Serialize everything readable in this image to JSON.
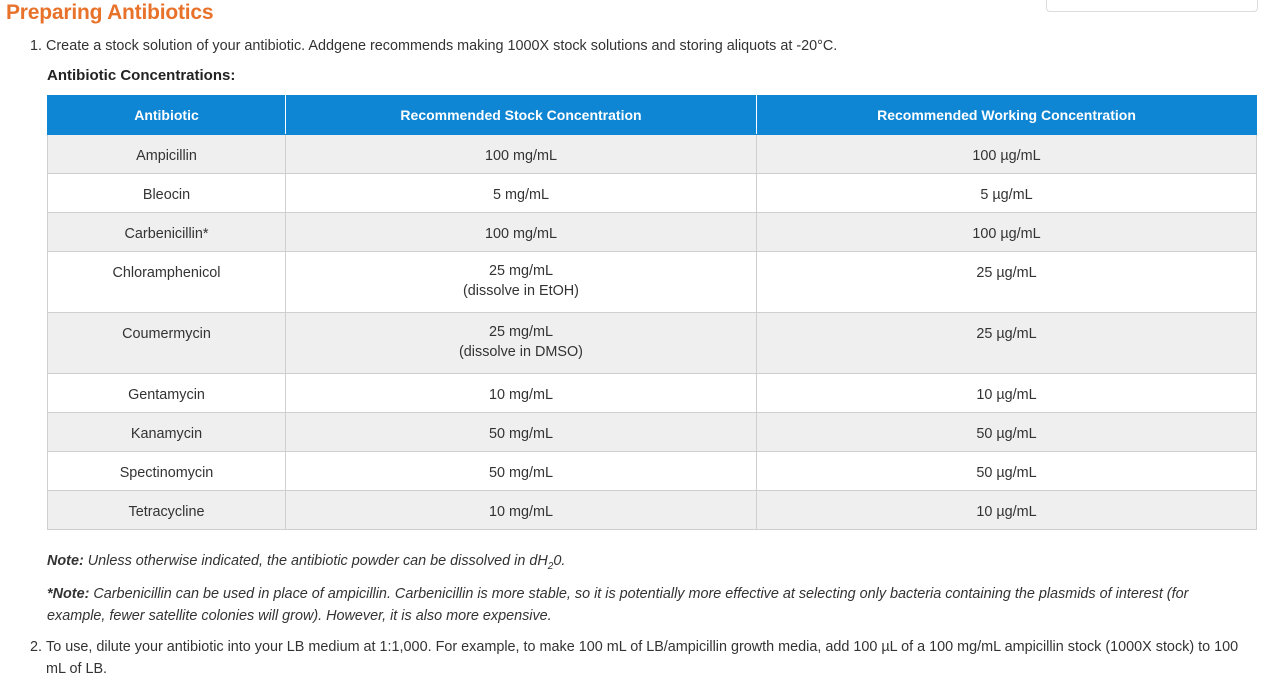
{
  "title": "Preparing Antibiotics",
  "step1": {
    "num": "1.",
    "text": "Create a stock solution of your antibiotic. Addgene recommends making 1000X stock solutions and storing aliquots at -20°C."
  },
  "subheading": "Antibiotic Concentrations:",
  "table": {
    "headers": [
      "Antibiotic",
      "Recommended Stock Concentration",
      "Recommended Working Concentration"
    ],
    "rows": [
      {
        "antibiotic": "Ampicillin",
        "stock": "100 mg/mL",
        "stock_note": "",
        "working": "100 µg/mL"
      },
      {
        "antibiotic": "Bleocin",
        "stock": "5 mg/mL",
        "stock_note": "",
        "working": "5 µg/mL"
      },
      {
        "antibiotic": "Carbenicillin*",
        "stock": "100 mg/mL",
        "stock_note": "",
        "working": "100 µg/mL"
      },
      {
        "antibiotic": "Chloramphenicol",
        "stock": "25 mg/mL",
        "stock_note": "(dissolve in EtOH)",
        "working": "25 µg/mL"
      },
      {
        "antibiotic": "Coumermycin",
        "stock": "25 mg/mL",
        "stock_note": "(dissolve in DMSO)",
        "working": "25 µg/mL"
      },
      {
        "antibiotic": "Gentamycin",
        "stock": "10 mg/mL",
        "stock_note": "",
        "working": "10 µg/mL"
      },
      {
        "antibiotic": "Kanamycin",
        "stock": "50 mg/mL",
        "stock_note": "",
        "working": "50 µg/mL"
      },
      {
        "antibiotic": "Spectinomycin",
        "stock": "50 mg/mL",
        "stock_note": "",
        "working": "50 µg/mL"
      },
      {
        "antibiotic": "Tetracycline",
        "stock": "10 mg/mL",
        "stock_note": "",
        "working": "10 µg/mL"
      }
    ]
  },
  "note1": {
    "label": "Note:",
    "text_before": " Unless otherwise indicated, the antibiotic powder can be dissolved in dH",
    "sub": "2",
    "text_after": "0."
  },
  "note2": {
    "label": "*Note:",
    "text": " Carbenicillin can be used in place of ampicillin. Carbenicillin is more stable, so it is potentially more effective at selecting only bacteria containing the plasmids of interest (for example, fewer satellite colonies will grow). However, it is also more expensive."
  },
  "step2": {
    "num": "2.",
    "text": "To use, dilute your antibiotic into your LB medium at 1:1,000. For example, to make 100 mL of LB/ampicillin growth media, add 100 µL of a 100 mg/mL ampicillin stock (1000X stock) to 100 mL of LB."
  },
  "colors": {
    "title": "#e8722a",
    "header_bg": "#0e86d4",
    "row_alt": "#efefef"
  }
}
